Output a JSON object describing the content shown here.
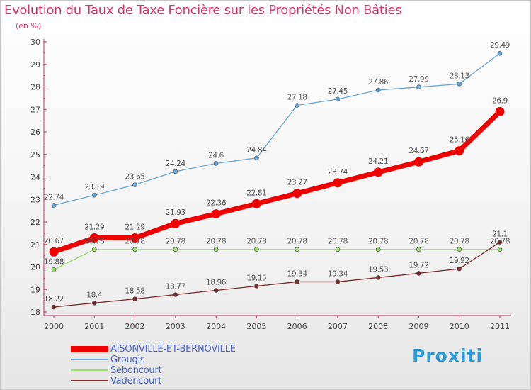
{
  "header": {
    "title": "Evolution du Taux de Taxe Foncière sur les Propriétés Non Bâties",
    "subtitle": "(en %)"
  },
  "brand": {
    "text": "Proxiti"
  },
  "chart_data": {
    "type": "line",
    "title": "Evolution du Taux de Taxe Foncière sur les Propriétés Non Bâties",
    "ylabel": "(en %)",
    "xlabel": "",
    "x": [
      "2000",
      "2001",
      "2002",
      "2003",
      "2004",
      "2005",
      "2006",
      "2007",
      "2008",
      "2009",
      "2010",
      "2011"
    ],
    "ylim": [
      18,
      30
    ],
    "yticks": [
      18,
      19,
      20,
      21,
      22,
      23,
      24,
      25,
      26,
      27,
      28,
      29,
      30
    ],
    "grid": false,
    "legend": "bottom-left",
    "series": [
      {
        "name": "AISONVILLE-ET-BERNOVILLE",
        "color": "#ee0000",
        "values": [
          20.67,
          21.29,
          21.29,
          21.93,
          22.36,
          22.81,
          23.27,
          23.74,
          24.21,
          24.67,
          25.16,
          26.9
        ],
        "labels": [
          "20.67",
          "21.29",
          "21.29",
          "21.93",
          "22.36",
          "22.81",
          "23.27",
          "23.74",
          "24.21",
          "24.67",
          "25.16",
          "26.9"
        ]
      },
      {
        "name": "Grougis",
        "color": "#6aa6d6",
        "values": [
          22.74,
          23.19,
          23.65,
          24.24,
          24.6,
          24.84,
          27.18,
          27.45,
          27.86,
          27.99,
          28.13,
          29.49
        ],
        "labels": [
          "22.74",
          "23.19",
          "23.65",
          "24.24",
          "24.6",
          "24.84",
          "27.18",
          "27.45",
          "27.86",
          "27.99",
          "28.13",
          "29.49"
        ]
      },
      {
        "name": "Seboncourt",
        "color": "#99dd66",
        "values": [
          19.88,
          20.78,
          20.78,
          20.78,
          20.78,
          20.78,
          20.78,
          20.78,
          20.78,
          20.78,
          20.78,
          20.78
        ],
        "labels": [
          "19.88",
          "20.78",
          "20.78",
          "20.78",
          "20.78",
          "20.78",
          "20.78",
          "20.78",
          "20.78",
          "20.78",
          "20.78",
          "20.78"
        ]
      },
      {
        "name": "Vadencourt",
        "color": "#7a2b2b",
        "values": [
          18.22,
          18.4,
          18.58,
          18.77,
          18.96,
          19.15,
          19.34,
          19.34,
          19.53,
          19.72,
          19.92,
          21.1
        ],
        "labels": [
          "18.22",
          "18.4",
          "18.58",
          "18.77",
          "18.96",
          "19.15",
          "19.34",
          "19.34",
          "19.53",
          "19.72",
          "19.92",
          "21.1"
        ]
      }
    ]
  }
}
